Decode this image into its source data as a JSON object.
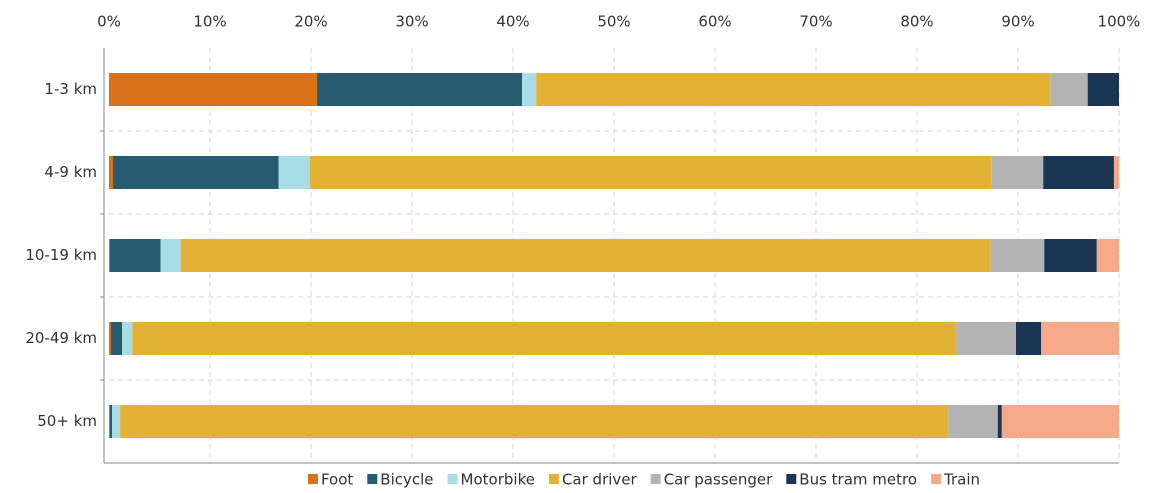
{
  "chart_data": {
    "type": "stacked_bar_horizontal",
    "categories": [
      "1-3 km",
      "4-9 km",
      "10-19 km",
      "20-49 km",
      "50+ km"
    ],
    "series": [
      {
        "name": "Foot",
        "color": "#d97119",
        "values": [
          20.6,
          0.4,
          0.1,
          0.2,
          0.1
        ]
      },
      {
        "name": "Bicycle",
        "color": "#275b6f",
        "values": [
          20.3,
          16.4,
          5.0,
          1.1,
          0.2
        ]
      },
      {
        "name": "Motorbike",
        "color": "#a8dce6",
        "values": [
          1.4,
          3.1,
          2.0,
          1.0,
          0.8
        ]
      },
      {
        "name": "Car driver",
        "color": "#e3b134",
        "values": [
          50.9,
          67.5,
          80.2,
          81.6,
          82.0
        ]
      },
      {
        "name": "Car passenger",
        "color": "#b3b3b3",
        "values": [
          3.7,
          5.1,
          5.3,
          5.9,
          4.9
        ]
      },
      {
        "name": "Bus tram metro",
        "color": "#1a3553",
        "values": [
          3.1,
          7.0,
          5.2,
          2.5,
          0.4
        ]
      },
      {
        "name": "Train",
        "color": "#f5a98a",
        "values": [
          0,
          0.5,
          2.2,
          7.7,
          11.6
        ]
      }
    ],
    "xlim": [
      0,
      100
    ],
    "xticks": [
      {
        "value": 0,
        "label": "0%"
      },
      {
        "value": 10,
        "label": "10%"
      },
      {
        "value": 20,
        "label": "20%"
      },
      {
        "value": 30,
        "label": "30%"
      },
      {
        "value": 40,
        "label": "40%"
      },
      {
        "value": 50,
        "label": "50%"
      },
      {
        "value": 60,
        "label": "60%"
      },
      {
        "value": 70,
        "label": "70%"
      },
      {
        "value": 80,
        "label": "80%"
      },
      {
        "value": 90,
        "label": "90%"
      },
      {
        "value": 100,
        "label": "100%"
      }
    ],
    "grid": true,
    "legend": "bottom"
  }
}
